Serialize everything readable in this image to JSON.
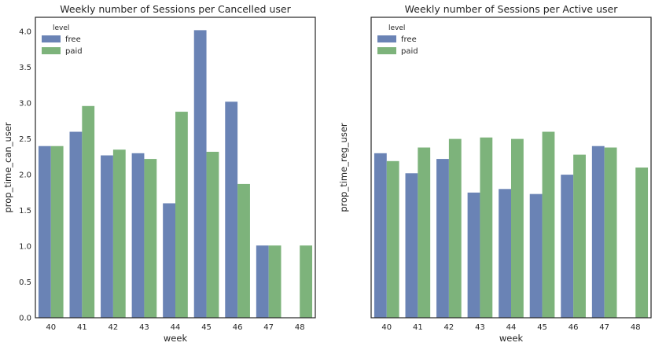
{
  "colors": {
    "free": "#6a83b5",
    "paid": "#7db37b",
    "frame": "#262626",
    "background": "#ffffff"
  },
  "chart_data": [
    {
      "type": "bar",
      "title": "Weekly number of Sessions per Cancelled user",
      "xlabel": "week",
      "ylabel": "prop_time_can_user",
      "categories": [
        "40",
        "41",
        "42",
        "43",
        "44",
        "45",
        "46",
        "47",
        "48"
      ],
      "ylim": [
        0,
        4.2
      ],
      "yticks": [
        0.0,
        0.5,
        1.0,
        1.5,
        2.0,
        2.5,
        3.0,
        3.5,
        4.0
      ],
      "show_yticks": true,
      "legend": {
        "title": "level",
        "placement": "top-left"
      },
      "series": [
        {
          "name": "free",
          "color": "#6a83b5",
          "values": [
            2.4,
            2.6,
            2.27,
            2.3,
            1.6,
            4.02,
            3.02,
            1.01,
            null
          ]
        },
        {
          "name": "paid",
          "color": "#7db37b",
          "values": [
            2.4,
            2.96,
            2.35,
            2.22,
            2.88,
            2.32,
            1.87,
            1.01,
            1.01
          ]
        }
      ]
    },
    {
      "type": "bar",
      "title": "Weekly number of Sessions per Active user",
      "xlabel": "week",
      "ylabel": "prop_time_reg_user",
      "categories": [
        "40",
        "41",
        "42",
        "43",
        "44",
        "45",
        "46",
        "47",
        "48"
      ],
      "ylim": [
        0,
        4.2
      ],
      "yticks": [],
      "show_yticks": false,
      "legend": {
        "title": "level",
        "placement": "top-left"
      },
      "series": [
        {
          "name": "free",
          "color": "#6a83b5",
          "values": [
            2.3,
            2.02,
            2.22,
            1.75,
            1.8,
            1.73,
            2.0,
            2.4,
            null
          ]
        },
        {
          "name": "paid",
          "color": "#7db37b",
          "values": [
            2.19,
            2.38,
            2.5,
            2.52,
            2.5,
            2.6,
            2.28,
            2.38,
            2.1
          ]
        }
      ]
    }
  ]
}
